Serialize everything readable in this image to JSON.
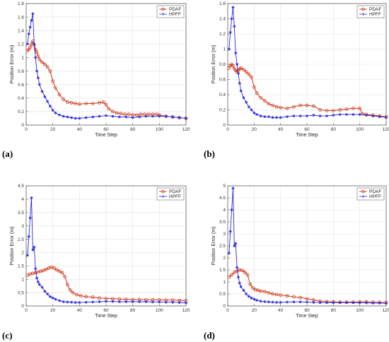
{
  "chart_data": [
    {
      "type": "line",
      "panel": "(a)",
      "xlabel": "Time Step",
      "ylabel": "Position Error (m)",
      "xlim": [
        0,
        120
      ],
      "ylim": [
        0,
        1.8
      ],
      "xticks": [
        0,
        20,
        40,
        60,
        80,
        100,
        120
      ],
      "yticks": [
        0,
        0.2,
        0.4,
        0.6,
        0.8,
        1,
        1.2,
        1.4,
        1.6,
        1.8
      ],
      "grid": true,
      "legend_position": "top-right",
      "series": [
        {
          "name": "PDAF",
          "color": "#cc2200",
          "marker": "circle",
          "x": [
            1,
            2,
            3,
            4,
            5,
            6,
            7,
            8,
            9,
            10,
            12,
            14,
            16,
            18,
            20,
            22,
            25,
            28,
            31,
            34,
            37,
            40,
            45,
            50,
            55,
            58,
            60,
            62,
            65,
            68,
            71,
            74,
            77,
            80,
            83,
            86,
            89,
            92,
            95,
            98,
            100,
            105,
            110,
            115,
            120
          ],
          "y": [
            1.1,
            1.12,
            1.15,
            1.2,
            1.24,
            1.18,
            1.12,
            1.08,
            1.02,
            0.97,
            0.93,
            0.9,
            0.86,
            0.8,
            0.65,
            0.55,
            0.45,
            0.38,
            0.34,
            0.33,
            0.32,
            0.31,
            0.32,
            0.32,
            0.33,
            0.34,
            0.3,
            0.24,
            0.2,
            0.18,
            0.17,
            0.16,
            0.16,
            0.15,
            0.15,
            0.16,
            0.16,
            0.16,
            0.16,
            0.16,
            0.15,
            0.13,
            0.12,
            0.11,
            0.1
          ]
        },
        {
          "name": "HPFF",
          "color": "#2a2ae0",
          "marker": "star",
          "x": [
            1,
            2,
            3,
            4,
            5,
            6,
            7,
            8,
            9,
            10,
            12,
            14,
            16,
            18,
            20,
            22,
            25,
            28,
            31,
            34,
            37,
            40,
            45,
            50,
            55,
            60,
            65,
            70,
            75,
            80,
            85,
            90,
            95,
            100,
            105,
            110,
            115,
            120
          ],
          "y": [
            1.2,
            1.35,
            1.45,
            1.55,
            1.65,
            1.2,
            1.0,
            0.8,
            0.7,
            0.6,
            0.5,
            0.42,
            0.35,
            0.28,
            0.22,
            0.18,
            0.15,
            0.13,
            0.12,
            0.11,
            0.1,
            0.1,
            0.11,
            0.12,
            0.13,
            0.14,
            0.13,
            0.12,
            0.12,
            0.11,
            0.12,
            0.13,
            0.13,
            0.13,
            0.13,
            0.12,
            0.11,
            0.1
          ]
        }
      ]
    },
    {
      "type": "line",
      "panel": "(b)",
      "xlabel": "Time Step",
      "ylabel": "Position Error (m)",
      "xlim": [
        0,
        120
      ],
      "ylim": [
        0,
        1.6
      ],
      "xticks": [
        0,
        20,
        40,
        60,
        80,
        100,
        120
      ],
      "yticks": [
        0,
        0.2,
        0.4,
        0.6,
        0.8,
        1,
        1.2,
        1.4,
        1.6
      ],
      "grid": true,
      "legend_position": "top-right",
      "series": [
        {
          "name": "PDAF",
          "color": "#cc2200",
          "marker": "circle",
          "x": [
            1,
            2,
            3,
            4,
            5,
            6,
            7,
            8,
            9,
            10,
            12,
            14,
            16,
            18,
            20,
            22,
            25,
            28,
            31,
            34,
            37,
            40,
            45,
            50,
            55,
            60,
            65,
            70,
            75,
            80,
            85,
            90,
            95,
            100,
            102,
            105,
            110,
            115,
            120
          ],
          "y": [
            0.75,
            0.78,
            0.8,
            0.78,
            0.74,
            0.72,
            0.7,
            0.72,
            0.74,
            0.75,
            0.73,
            0.7,
            0.67,
            0.63,
            0.5,
            0.42,
            0.36,
            0.32,
            0.28,
            0.26,
            0.24,
            0.23,
            0.22,
            0.24,
            0.26,
            0.26,
            0.25,
            0.2,
            0.19,
            0.19,
            0.2,
            0.21,
            0.22,
            0.22,
            0.15,
            0.14,
            0.13,
            0.12,
            0.11
          ]
        },
        {
          "name": "HPFF",
          "color": "#2a2ae0",
          "marker": "star",
          "x": [
            1,
            2,
            3,
            4,
            5,
            6,
            7,
            8,
            9,
            10,
            12,
            14,
            16,
            18,
            20,
            22,
            25,
            28,
            31,
            34,
            37,
            40,
            45,
            50,
            55,
            60,
            65,
            70,
            75,
            80,
            85,
            90,
            95,
            100,
            105,
            110,
            115,
            120
          ],
          "y": [
            1.0,
            1.22,
            1.4,
            1.55,
            1.3,
            0.95,
            0.8,
            0.68,
            0.55,
            0.45,
            0.36,
            0.3,
            0.24,
            0.2,
            0.16,
            0.14,
            0.12,
            0.11,
            0.11,
            0.1,
            0.1,
            0.1,
            0.11,
            0.12,
            0.12,
            0.12,
            0.13,
            0.12,
            0.12,
            0.13,
            0.14,
            0.14,
            0.14,
            0.14,
            0.13,
            0.12,
            0.11,
            0.1
          ]
        }
      ]
    },
    {
      "type": "line",
      "panel": "(c)",
      "xlabel": "Time Step",
      "ylabel": "Position Error (m)",
      "xlim": [
        0,
        120
      ],
      "ylim": [
        0,
        4.5
      ],
      "xticks": [
        0,
        20,
        40,
        60,
        80,
        100,
        120
      ],
      "yticks": [
        0,
        0.5,
        1,
        1.5,
        2,
        2.5,
        3,
        3.5,
        4,
        4.5
      ],
      "grid": true,
      "legend_position": "top-right",
      "series": [
        {
          "name": "PDAF",
          "color": "#cc2200",
          "marker": "circle",
          "x": [
            1,
            3,
            5,
            7,
            9,
            11,
            13,
            15,
            17,
            19,
            21,
            23,
            25,
            27,
            29,
            31,
            33,
            35,
            38,
            41,
            45,
            50,
            55,
            60,
            65,
            70,
            75,
            80,
            85,
            90,
            95,
            100,
            105,
            110,
            115,
            120
          ],
          "y": [
            1.15,
            1.2,
            1.22,
            1.25,
            1.27,
            1.3,
            1.33,
            1.37,
            1.42,
            1.45,
            1.42,
            1.35,
            1.3,
            1.25,
            1.1,
            0.8,
            0.6,
            0.5,
            0.42,
            0.38,
            0.35,
            0.33,
            0.3,
            0.28,
            0.27,
            0.26,
            0.25,
            0.24,
            0.24,
            0.23,
            0.23,
            0.23,
            0.22,
            0.22,
            0.21,
            0.2
          ]
        },
        {
          "name": "HPFF",
          "color": "#2a2ae0",
          "marker": "star",
          "x": [
            1,
            2,
            3,
            4,
            5,
            6,
            7,
            8,
            9,
            10,
            12,
            14,
            16,
            18,
            20,
            22,
            25,
            28,
            31,
            34,
            37,
            40,
            45,
            50,
            55,
            60,
            65,
            70,
            75,
            80,
            85,
            90,
            95,
            100,
            105,
            110,
            115,
            120
          ],
          "y": [
            1.9,
            2.6,
            3.3,
            4.05,
            2.1,
            2.2,
            1.4,
            1.05,
            0.9,
            0.8,
            0.7,
            0.55,
            0.45,
            0.35,
            0.3,
            0.25,
            0.2,
            0.16,
            0.15,
            0.14,
            0.13,
            0.13,
            0.14,
            0.15,
            0.16,
            0.17,
            0.17,
            0.16,
            0.16,
            0.16,
            0.16,
            0.16,
            0.15,
            0.15,
            0.14,
            0.14,
            0.13,
            0.12
          ]
        }
      ]
    },
    {
      "type": "line",
      "panel": "(d)",
      "xlabel": "Time Step",
      "ylabel": "Position Error (m)",
      "xlim": [
        0,
        120
      ],
      "ylim": [
        0,
        5
      ],
      "xticks": [
        0,
        20,
        40,
        60,
        80,
        100,
        120
      ],
      "yticks": [
        0,
        0.5,
        1,
        1.5,
        2,
        2.5,
        3,
        3.5,
        4,
        4.5,
        5
      ],
      "grid": true,
      "legend_position": "top-right",
      "series": [
        {
          "name": "PDAF",
          "color": "#cc2200",
          "marker": "circle",
          "x": [
            1,
            3,
            5,
            7,
            9,
            11,
            13,
            15,
            17,
            19,
            21,
            23,
            25,
            28,
            31,
            34,
            37,
            40,
            45,
            50,
            55,
            60,
            65,
            70,
            75,
            80,
            85,
            90,
            95,
            100,
            105,
            110,
            115,
            120
          ],
          "y": [
            1.2,
            1.3,
            1.4,
            1.45,
            1.5,
            1.48,
            1.4,
            1.3,
            0.9,
            0.75,
            0.68,
            0.65,
            0.62,
            0.6,
            0.55,
            0.5,
            0.48,
            0.45,
            0.42,
            0.38,
            0.35,
            0.3,
            0.25,
            0.2,
            0.18,
            0.17,
            0.16,
            0.16,
            0.16,
            0.17,
            0.17,
            0.16,
            0.15,
            0.15
          ]
        },
        {
          "name": "HPFF",
          "color": "#2a2ae0",
          "marker": "star",
          "x": [
            1,
            2,
            3,
            4,
            5,
            6,
            7,
            8,
            9,
            10,
            12,
            14,
            16,
            18,
            20,
            22,
            25,
            28,
            31,
            34,
            37,
            40,
            45,
            50,
            55,
            60,
            65,
            70,
            75,
            80,
            85,
            90,
            95,
            100,
            105,
            110,
            115,
            120
          ],
          "y": [
            2.2,
            3.1,
            4.0,
            4.9,
            2.5,
            2.6,
            1.6,
            1.2,
            0.95,
            0.8,
            0.65,
            0.5,
            0.4,
            0.33,
            0.28,
            0.24,
            0.2,
            0.18,
            0.17,
            0.16,
            0.15,
            0.15,
            0.16,
            0.17,
            0.17,
            0.16,
            0.15,
            0.14,
            0.14,
            0.14,
            0.14,
            0.14,
            0.14,
            0.13,
            0.13,
            0.12,
            0.12,
            0.11
          ]
        }
      ]
    }
  ]
}
